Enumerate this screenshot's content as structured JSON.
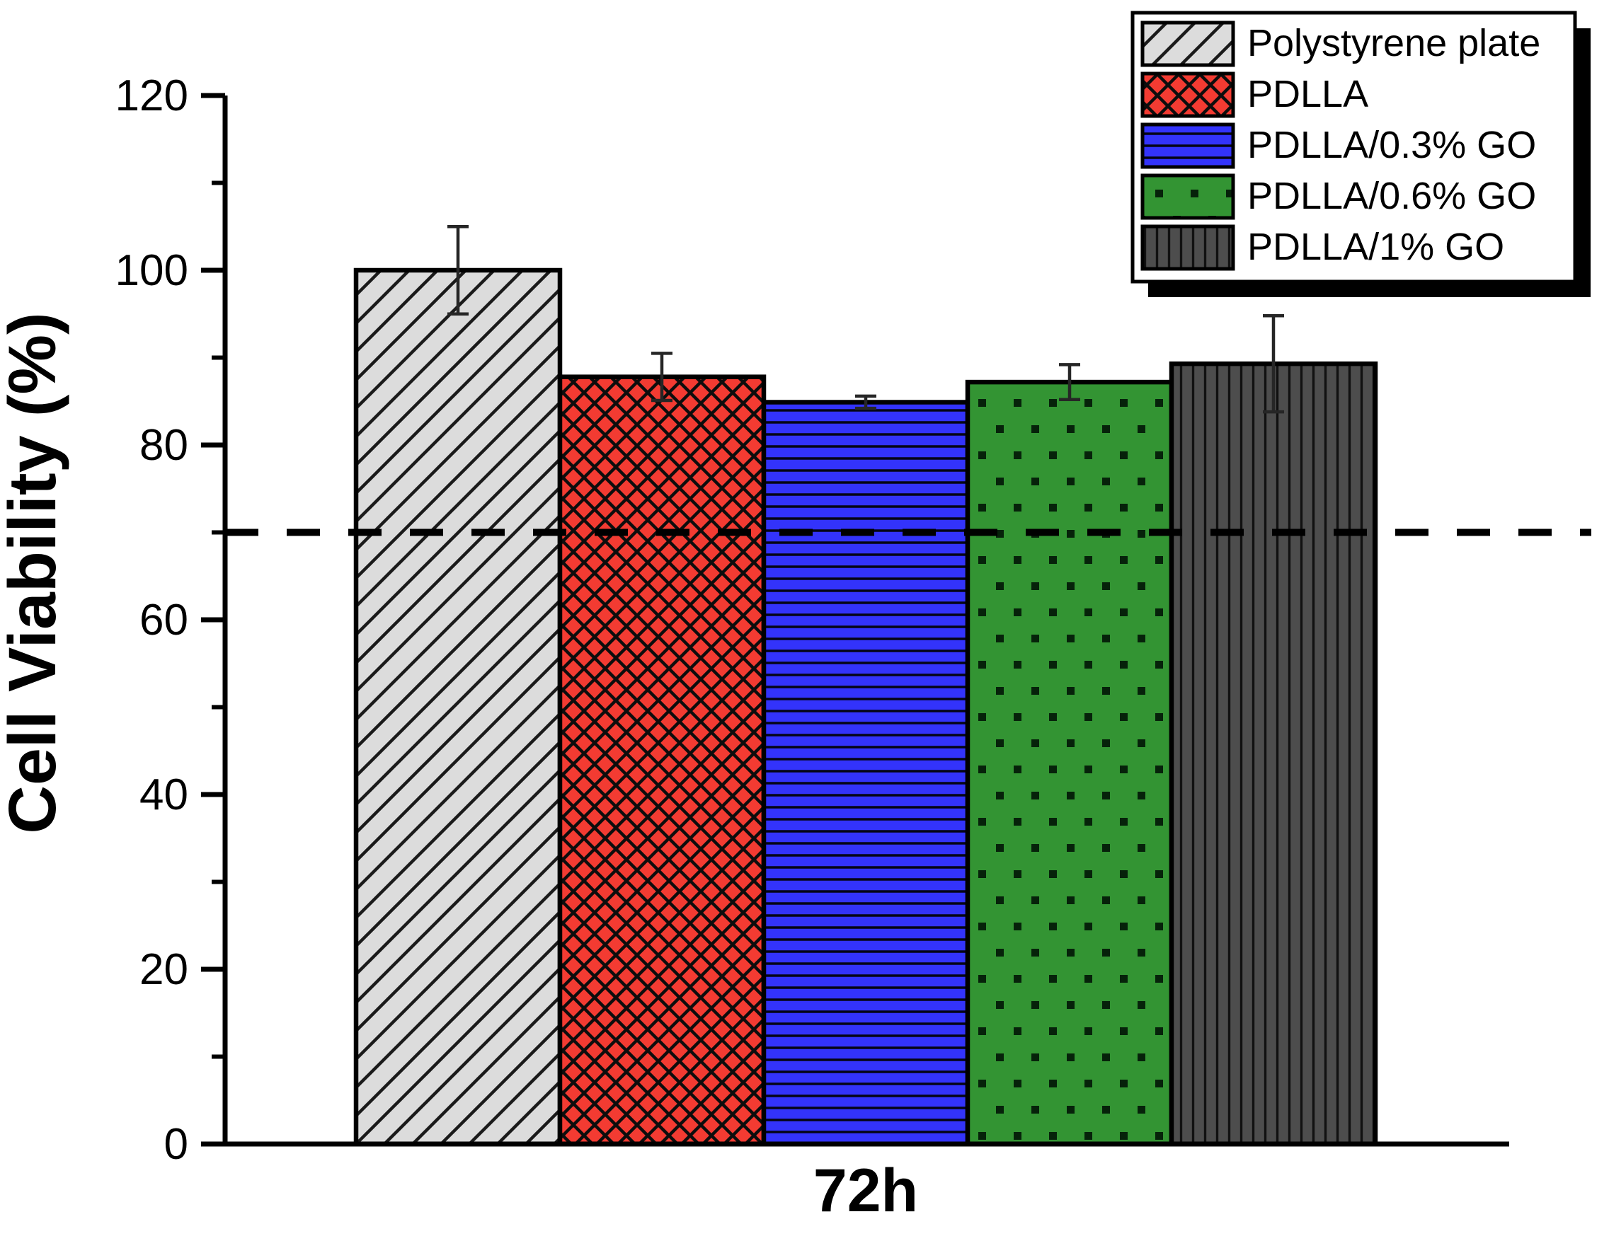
{
  "figure": {
    "background": "#FFFFFF"
  },
  "chart_data": {
    "type": "bar",
    "title": "",
    "xlabel": "72h",
    "ylabel": "Cell Viability (%)",
    "ylim": [
      0,
      120
    ],
    "yticks": [
      0,
      20,
      40,
      60,
      80,
      100,
      120
    ],
    "minor_yticks": [
      10,
      30,
      50,
      70,
      90,
      110
    ],
    "grid": false,
    "categories": [
      "Polystyrene plate",
      "PDLLA",
      "PDLLA/0.3% GO",
      "PDLLA/0.6% GO",
      "PDLLA/1% GO"
    ],
    "series": [
      {
        "name": "Polystyrene plate",
        "value": 100.0,
        "error": 5.0,
        "fill": "#DCDCDC",
        "pattern": "diagonal-hatch"
      },
      {
        "name": "PDLLA",
        "value": 87.8,
        "error": 2.7,
        "fill": "#F33B32",
        "pattern": "crosshatch"
      },
      {
        "name": "PDLLA/0.3% GO",
        "value": 84.9,
        "error": 0.7,
        "fill": "#3333FB",
        "pattern": "horizontal-lines"
      },
      {
        "name": "PDLLA/0.6% GO",
        "value": 87.2,
        "error": 2.0,
        "fill": "#339433",
        "pattern": "square-dots"
      },
      {
        "name": "PDLLA/1% GO",
        "value": 89.3,
        "error": 5.5,
        "fill": "#4D4D4D",
        "pattern": "vertical-lines"
      }
    ],
    "threshold_line": {
      "value": 70,
      "style": "dashed",
      "color": "#000000"
    },
    "legend": {
      "position": "top-right",
      "entries": [
        "Polystyrene plate",
        "PDLLA",
        "PDLLA/0.3% GO",
        "PDLLA/0.6% GO",
        "PDLLA/1% GO"
      ]
    },
    "error_bar_color": "#262626",
    "axis_color": "#000000"
  }
}
